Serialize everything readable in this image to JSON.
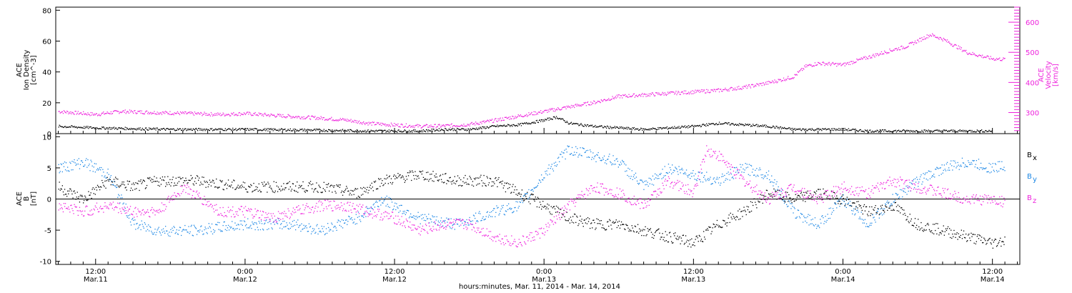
{
  "figure": {
    "xlabel": "hours:minutes, Mar. 11, 2014 - Mar. 14, 2014",
    "colors": {
      "black": "#000000",
      "magenta": "#ee22dd",
      "blue": "#1e88e5"
    }
  },
  "chart_data": [
    {
      "type": "scatter",
      "panel": "top",
      "ylabel_left": [
        "ACE",
        "Ion Density",
        "[cm^-3]"
      ],
      "ylabel_right": [
        "ACE",
        "Velocity",
        "[km/s]"
      ],
      "ylim_left": [
        0,
        82
      ],
      "ylim_right": [
        230,
        650
      ],
      "yticks_left": [
        0,
        20,
        40,
        60,
        80
      ],
      "yticks_right": [
        300,
        400,
        500,
        600
      ],
      "x_unit": "hours from 2014-03-11 00:00 UT",
      "xlim": [
        8.8,
        86.2
      ],
      "series": [
        {
          "label": "Ion Density",
          "axis": "left",
          "color": "#000000",
          "points": [
            [
              9,
              5
            ],
            [
              12,
              4
            ],
            [
              18,
              3
            ],
            [
              24,
              3
            ],
            [
              30,
              2.5
            ],
            [
              34,
              2
            ],
            [
              36,
              2
            ],
            [
              38,
              2
            ],
            [
              40,
              3
            ],
            [
              42,
              3
            ],
            [
              44,
              5
            ],
            [
              46,
              6
            ],
            [
              48,
              9
            ],
            [
              49,
              11
            ],
            [
              50,
              7
            ],
            [
              52,
              5
            ],
            [
              54,
              4
            ],
            [
              56,
              3
            ],
            [
              58,
              4
            ],
            [
              60,
              5
            ],
            [
              62,
              7
            ],
            [
              64,
              6
            ],
            [
              66,
              5
            ],
            [
              68,
              3
            ],
            [
              70,
              3
            ],
            [
              72,
              3
            ],
            [
              74,
              2
            ],
            [
              76,
              2
            ],
            [
              78,
              2
            ],
            [
              80,
              2
            ],
            [
              82,
              2
            ],
            [
              84,
              2
            ]
          ]
        },
        {
          "label": "Velocity",
          "axis": "right",
          "color": "#ee22dd",
          "points": [
            [
              9,
              305
            ],
            [
              12,
              295
            ],
            [
              14,
              305
            ],
            [
              18,
              300
            ],
            [
              22,
              295
            ],
            [
              24,
              298
            ],
            [
              27,
              290
            ],
            [
              30,
              283
            ],
            [
              32,
              277
            ],
            [
              34,
              265
            ],
            [
              36,
              260
            ],
            [
              38,
              256
            ],
            [
              40,
              257
            ],
            [
              42,
              262
            ],
            [
              44,
              275
            ],
            [
              46,
              290
            ],
            [
              48,
              305
            ],
            [
              50,
              320
            ],
            [
              52,
              335
            ],
            [
              54,
              355
            ],
            [
              56,
              360
            ],
            [
              58,
              365
            ],
            [
              60,
              370
            ],
            [
              62,
              375
            ],
            [
              64,
              385
            ],
            [
              66,
              400
            ],
            [
              68,
              420
            ],
            [
              69,
              455
            ],
            [
              70,
              465
            ],
            [
              72,
              460
            ],
            [
              74,
              485
            ],
            [
              76,
              510
            ],
            [
              77,
              520
            ],
            [
              78,
              540
            ],
            [
              79,
              560
            ],
            [
              80,
              545
            ],
            [
              82,
              500
            ],
            [
              84,
              480
            ],
            [
              85,
              478
            ]
          ]
        }
      ]
    },
    {
      "type": "scatter",
      "panel": "bottom",
      "ylabel_left": [
        "ACE",
        "B",
        "[nT]"
      ],
      "ylim": [
        -10.5,
        10.5
      ],
      "yticks": [
        -10,
        -5,
        0,
        5,
        10
      ],
      "zero_line": true,
      "x_unit": "hours from 2014-03-11 00:00 UT",
      "xlim": [
        8.8,
        86.2
      ],
      "series": [
        {
          "label": "Bx",
          "color": "#000000",
          "points": [
            [
              9,
              2
            ],
            [
              11,
              0
            ],
            [
              13,
              3
            ],
            [
              15,
              2
            ],
            [
              17,
              3
            ],
            [
              20,
              3
            ],
            [
              24,
              2
            ],
            [
              28,
              2
            ],
            [
              30,
              2
            ],
            [
              33,
              1
            ],
            [
              35,
              3
            ],
            [
              38,
              4
            ],
            [
              41,
              3
            ],
            [
              44,
              3
            ],
            [
              46,
              1
            ],
            [
              48,
              -1
            ],
            [
              50,
              -3
            ],
            [
              52,
              -4
            ],
            [
              54,
              -4
            ],
            [
              56,
              -5
            ],
            [
              58,
              -6
            ],
            [
              60,
              -7
            ],
            [
              62,
              -4
            ],
            [
              64,
              -2
            ],
            [
              66,
              1
            ],
            [
              68,
              0
            ],
            [
              70,
              1
            ],
            [
              72,
              0
            ],
            [
              74,
              -2
            ],
            [
              76,
              -1
            ],
            [
              78,
              -4
            ],
            [
              80,
              -5
            ],
            [
              82,
              -6
            ],
            [
              84,
              -7
            ],
            [
              85,
              -6.5
            ]
          ]
        },
        {
          "label": "By",
          "color": "#1e88e5",
          "points": [
            [
              9,
              5
            ],
            [
              11,
              6
            ],
            [
              13,
              4
            ],
            [
              15,
              -4
            ],
            [
              17,
              -5
            ],
            [
              20,
              -5
            ],
            [
              24,
              -4
            ],
            [
              28,
              -4
            ],
            [
              30,
              -5
            ],
            [
              33,
              -3
            ],
            [
              35,
              0
            ],
            [
              38,
              -3
            ],
            [
              41,
              -4
            ],
            [
              44,
              -2
            ],
            [
              46,
              -1
            ],
            [
              48,
              4
            ],
            [
              50,
              8
            ],
            [
              52,
              7
            ],
            [
              54,
              6
            ],
            [
              56,
              2
            ],
            [
              58,
              5
            ],
            [
              60,
              4
            ],
            [
              62,
              3
            ],
            [
              64,
              5
            ],
            [
              66,
              4
            ],
            [
              68,
              -2
            ],
            [
              70,
              -4
            ],
            [
              72,
              0
            ],
            [
              74,
              -4
            ],
            [
              76,
              0
            ],
            [
              78,
              3
            ],
            [
              80,
              5
            ],
            [
              82,
              6
            ],
            [
              84,
              5
            ],
            [
              85,
              5.5
            ]
          ]
        },
        {
          "label": "Bz",
          "color": "#ee22dd",
          "points": [
            [
              9,
              -1
            ],
            [
              11,
              -2
            ],
            [
              13,
              -1
            ],
            [
              15,
              -2
            ],
            [
              17,
              -2
            ],
            [
              19,
              2
            ],
            [
              22,
              -2
            ],
            [
              24,
              -2
            ],
            [
              26,
              -3
            ],
            [
              28,
              -2
            ],
            [
              30,
              -1
            ],
            [
              32,
              -1
            ],
            [
              34,
              -2
            ],
            [
              36,
              -3
            ],
            [
              38,
              -5
            ],
            [
              40,
              -4
            ],
            [
              42,
              -4
            ],
            [
              44,
              -6
            ],
            [
              46,
              -7
            ],
            [
              48,
              -5
            ],
            [
              50,
              -1
            ],
            [
              52,
              2
            ],
            [
              54,
              1
            ],
            [
              56,
              -1
            ],
            [
              58,
              3
            ],
            [
              60,
              1
            ],
            [
              61,
              8
            ],
            [
              62,
              7
            ],
            [
              64,
              3
            ],
            [
              66,
              0
            ],
            [
              68,
              2
            ],
            [
              70,
              0
            ],
            [
              72,
              2
            ],
            [
              74,
              1
            ],
            [
              76,
              3
            ],
            [
              78,
              2
            ],
            [
              80,
              1
            ],
            [
              82,
              0
            ],
            [
              84,
              0
            ],
            [
              85,
              -0.5
            ]
          ]
        }
      ]
    }
  ],
  "xaxis": {
    "ticks": [
      {
        "t": 12,
        "time": "12:00",
        "date": "Mar.11"
      },
      {
        "t": 24,
        "time": "0:00",
        "date": "Mar.12"
      },
      {
        "t": 36,
        "time": "12:00",
        "date": "Mar.12"
      },
      {
        "t": 48,
        "time": "0:00",
        "date": "Mar.13"
      },
      {
        "t": 60,
        "time": "12:00",
        "date": "Mar.13"
      },
      {
        "t": 72,
        "time": "0:00",
        "date": "Mar.14"
      },
      {
        "t": 84,
        "time": "12:00",
        "date": "Mar.14"
      }
    ]
  },
  "legend_b": [
    {
      "base": "B",
      "sub": "x",
      "color": "#000000"
    },
    {
      "base": "B",
      "sub": "y",
      "color": "#1e88e5"
    },
    {
      "base": "B",
      "sub": "z",
      "color": "#ee22dd"
    }
  ]
}
